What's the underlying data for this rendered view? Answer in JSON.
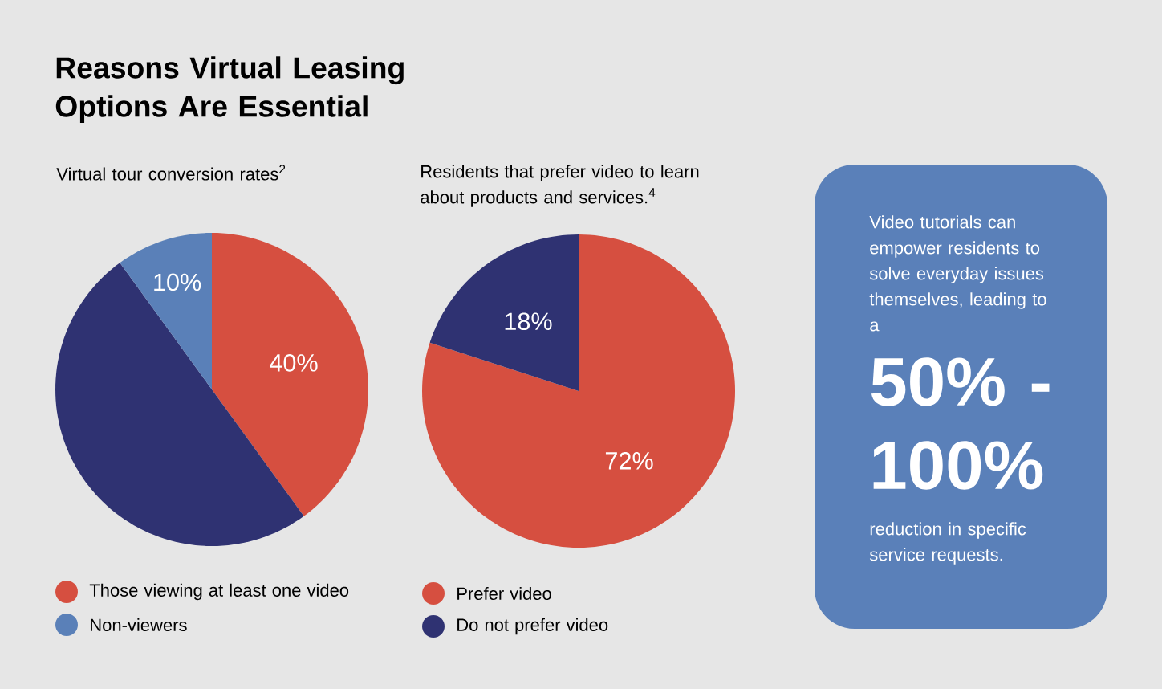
{
  "chart_data": [
    {
      "type": "pie",
      "title": "Reasons Virtual Leasing Options Are Essential",
      "subtitle": "Virtual tour conversion rates$^{2}$",
      "categories": [
        "Those viewing at least one video",
        null,
        "Non-viewers"
      ],
      "values": [
        40,
        50,
        10
      ],
      "colors": [
        "#d64f40",
        "#2f3272",
        "#5a80b8"
      ],
      "value_labels": [
        "40%",
        null,
        "10%"
      ],
      "legend": "bottom"
    },
    {
      "type": "pie",
      "title": "Residents that prefer video to learn about products and services.$^{4}$",
      "categories": [
        "Prefer video",
        "Do not prefer video"
      ],
      "values": [
        72,
        18
      ],
      "colors": [
        "#d64f40",
        "#2f3272"
      ],
      "value_labels": [
        "72%",
        "18%"
      ],
      "legend": "bottom"
    },
    {
      "type": "other",
      "annotations": [
        "Video tutorials can empower residents to solve everyday issues themselves, leading to a",
        "50% - 100%",
        "reduction in specific service requests."
      ]
    }
  ]
}
